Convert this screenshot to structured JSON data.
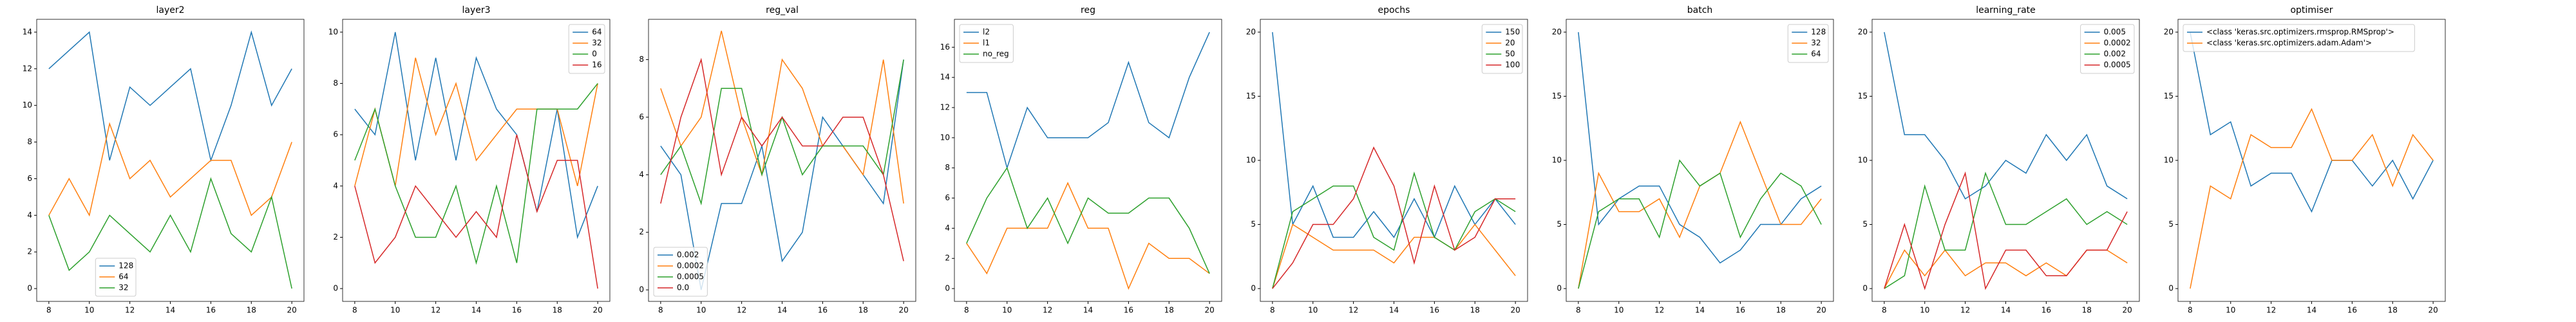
{
  "chart_data": [
    {
      "type": "line",
      "title": "layer2",
      "x": [
        8,
        9,
        10,
        11,
        12,
        13,
        14,
        15,
        16,
        17,
        18,
        19,
        20
      ],
      "xlim": [
        7.4,
        20.6
      ],
      "xticks": [
        8,
        10,
        12,
        14,
        16,
        18,
        20
      ],
      "ylim": [
        -0.7,
        14.7
      ],
      "yticks": [
        0,
        2,
        4,
        6,
        8,
        10,
        12,
        14
      ],
      "legend": "lower center",
      "series": [
        {
          "name": "128",
          "color": "#1f77b4",
          "values": [
            12,
            13,
            14,
            7,
            11,
            10,
            11,
            12,
            7,
            10,
            14,
            10,
            12
          ]
        },
        {
          "name": "64",
          "color": "#ff7f0e",
          "values": [
            4,
            6,
            4,
            9,
            6,
            7,
            5,
            6,
            7,
            7,
            4,
            5,
            8
          ]
        },
        {
          "name": "32",
          "color": "#2ca02c",
          "values": [
            4,
            1,
            2,
            4,
            3,
            2,
            4,
            2,
            6,
            3,
            2,
            5,
            0
          ]
        }
      ]
    },
    {
      "type": "line",
      "title": "layer3",
      "x": [
        8,
        9,
        10,
        11,
        12,
        13,
        14,
        15,
        16,
        17,
        18,
        19,
        20
      ],
      "xlim": [
        7.4,
        20.6
      ],
      "xticks": [
        8,
        10,
        12,
        14,
        16,
        18,
        20
      ],
      "ylim": [
        -0.5,
        10.5
      ],
      "yticks": [
        0,
        2,
        4,
        6,
        8,
        10
      ],
      "legend": "upper right",
      "series": [
        {
          "name": "64",
          "color": "#1f77b4",
          "values": [
            7,
            6,
            10,
            5,
            9,
            5,
            9,
            7,
            6,
            3,
            7,
            2,
            4
          ]
        },
        {
          "name": "32",
          "color": "#ff7f0e",
          "values": [
            4,
            7,
            4,
            9,
            6,
            8,
            5,
            6,
            7,
            7,
            7,
            4,
            8
          ]
        },
        {
          "name": "0",
          "color": "#2ca02c",
          "values": [
            5,
            7,
            4,
            2,
            2,
            4,
            1,
            4,
            1,
            7,
            7,
            7,
            8
          ]
        },
        {
          "name": "16",
          "color": "#d62728",
          "values": [
            4,
            1,
            2,
            4,
            3,
            2,
            3,
            2,
            6,
            3,
            5,
            5,
            0
          ]
        }
      ]
    },
    {
      "type": "line",
      "title": "reg_val",
      "x": [
        8,
        9,
        10,
        11,
        12,
        13,
        14,
        15,
        16,
        17,
        18,
        19,
        20
      ],
      "xlim": [
        7.4,
        20.6
      ],
      "xticks": [
        8,
        10,
        12,
        14,
        16,
        18,
        20
      ],
      "ylim": [
        -0.4,
        9.4
      ],
      "yticks": [
        0,
        2,
        4,
        6,
        8
      ],
      "legend": "lower left",
      "series": [
        {
          "name": "0.002",
          "color": "#1f77b4",
          "values": [
            5,
            4,
            0,
            3,
            3,
            5,
            1,
            2,
            6,
            5,
            4,
            3,
            8
          ]
        },
        {
          "name": "0.0002",
          "color": "#ff7f0e",
          "values": [
            7,
            5,
            6,
            9,
            6,
            4,
            8,
            7,
            5,
            5,
            4,
            8,
            3
          ]
        },
        {
          "name": "0.0005",
          "color": "#2ca02c",
          "values": [
            4,
            5,
            3,
            7,
            7,
            4,
            6,
            4,
            5,
            5,
            5,
            4,
            8
          ]
        },
        {
          "name": "0.0",
          "color": "#d62728",
          "values": [
            3,
            6,
            8,
            4,
            6,
            5,
            6,
            5,
            5,
            6,
            6,
            4,
            1
          ]
        }
      ]
    },
    {
      "type": "line",
      "title": "reg",
      "x": [
        8,
        9,
        10,
        11,
        12,
        13,
        14,
        15,
        16,
        17,
        18,
        19,
        20
      ],
      "xlim": [
        7.4,
        20.6
      ],
      "xticks": [
        8,
        10,
        12,
        14,
        16,
        18,
        20
      ],
      "ylim": [
        -0.85,
        17.85
      ],
      "yticks": [
        0,
        2,
        4,
        6,
        8,
        10,
        12,
        14,
        16
      ],
      "legend": "upper left",
      "series": [
        {
          "name": "l2",
          "color": "#1f77b4",
          "values": [
            13,
            13,
            8,
            12,
            10,
            10,
            10,
            11,
            15,
            11,
            10,
            14,
            17
          ]
        },
        {
          "name": "l1",
          "color": "#ff7f0e",
          "values": [
            3,
            1,
            4,
            4,
            4,
            7,
            4,
            4,
            0,
            3,
            2,
            2,
            1
          ]
        },
        {
          "name": "no_reg",
          "color": "#2ca02c",
          "values": [
            3,
            6,
            8,
            4,
            6,
            3,
            6,
            5,
            5,
            6,
            6,
            4,
            1
          ]
        }
      ]
    },
    {
      "type": "line",
      "title": "epochs",
      "x": [
        8,
        9,
        10,
        11,
        12,
        13,
        14,
        15,
        16,
        17,
        18,
        19,
        20
      ],
      "xlim": [
        7.4,
        20.6
      ],
      "xticks": [
        8,
        10,
        12,
        14,
        16,
        18,
        20
      ],
      "ylim": [
        -1,
        21
      ],
      "yticks": [
        0,
        5,
        10,
        15,
        20
      ],
      "legend": "upper right",
      "series": [
        {
          "name": "150",
          "color": "#1f77b4",
          "values": [
            20,
            5,
            8,
            4,
            4,
            6,
            4,
            7,
            4,
            8,
            5,
            7,
            5
          ]
        },
        {
          "name": "20",
          "color": "#ff7f0e",
          "values": [
            0,
            5,
            4,
            3,
            3,
            3,
            2,
            4,
            4,
            3,
            5,
            3,
            1
          ]
        },
        {
          "name": "50",
          "color": "#2ca02c",
          "values": [
            0,
            6,
            7,
            8,
            8,
            4,
            3,
            9,
            4,
            3,
            6,
            7,
            6
          ]
        },
        {
          "name": "100",
          "color": "#d62728",
          "values": [
            0,
            2,
            5,
            5,
            7,
            11,
            8,
            2,
            8,
            3,
            4,
            7,
            7
          ]
        }
      ]
    },
    {
      "type": "line",
      "title": "batch",
      "x": [
        8,
        9,
        10,
        11,
        12,
        13,
        14,
        15,
        16,
        17,
        18,
        19,
        20
      ],
      "xlim": [
        7.4,
        20.6
      ],
      "xticks": [
        8,
        10,
        12,
        14,
        16,
        18,
        20
      ],
      "ylim": [
        -1,
        21
      ],
      "yticks": [
        0,
        5,
        10,
        15,
        20
      ],
      "legend": "upper right",
      "series": [
        {
          "name": "128",
          "color": "#1f77b4",
          "values": [
            20,
            5,
            7,
            8,
            8,
            5,
            4,
            2,
            3,
            5,
            5,
            7,
            8
          ]
        },
        {
          "name": "32",
          "color": "#ff7f0e",
          "values": [
            0,
            9,
            6,
            6,
            7,
            4,
            8,
            9,
            13,
            9,
            5,
            5,
            7
          ]
        },
        {
          "name": "64",
          "color": "#2ca02c",
          "values": [
            0,
            6,
            7,
            7,
            4,
            10,
            8,
            9,
            4,
            7,
            9,
            8,
            5
          ]
        }
      ]
    },
    {
      "type": "line",
      "title": "learning_rate",
      "x": [
        8,
        9,
        10,
        11,
        12,
        13,
        14,
        15,
        16,
        17,
        18,
        19,
        20
      ],
      "xlim": [
        7.4,
        20.6
      ],
      "xticks": [
        8,
        10,
        12,
        14,
        16,
        18,
        20
      ],
      "ylim": [
        -1,
        21
      ],
      "yticks": [
        0,
        5,
        10,
        15,
        20
      ],
      "legend": "upper right",
      "series": [
        {
          "name": "0.005",
          "color": "#1f77b4",
          "values": [
            20,
            12,
            12,
            10,
            7,
            8,
            10,
            9,
            12,
            10,
            12,
            8,
            7
          ]
        },
        {
          "name": "0.0002",
          "color": "#ff7f0e",
          "values": [
            0,
            3,
            1,
            3,
            1,
            2,
            2,
            1,
            2,
            1,
            3,
            3,
            2
          ]
        },
        {
          "name": "0.002",
          "color": "#2ca02c",
          "values": [
            0,
            1,
            8,
            3,
            3,
            9,
            5,
            5,
            6,
            7,
            5,
            6,
            5
          ]
        },
        {
          "name": "0.0005",
          "color": "#d62728",
          "values": [
            0,
            5,
            0,
            5,
            9,
            0,
            3,
            3,
            1,
            1,
            3,
            3,
            6
          ]
        }
      ]
    },
    {
      "type": "line",
      "title": "optimiser",
      "x": [
        8,
        9,
        10,
        11,
        12,
        13,
        14,
        15,
        16,
        17,
        18,
        19,
        20
      ],
      "xlim": [
        7.4,
        20.6
      ],
      "xticks": [
        8,
        10,
        12,
        14,
        16,
        18,
        20
      ],
      "ylim": [
        -1,
        21
      ],
      "yticks": [
        0,
        5,
        10,
        15,
        20
      ],
      "legend": "upper left",
      "series": [
        {
          "name": "<class 'keras.src.optimizers.rmsprop.RMSprop'>",
          "color": "#1f77b4",
          "values": [
            20,
            12,
            13,
            8,
            9,
            9,
            6,
            10,
            10,
            8,
            10,
            7,
            10
          ]
        },
        {
          "name": "<class 'keras.src.optimizers.adam.Adam'>",
          "color": "#ff7f0e",
          "values": [
            0,
            8,
            7,
            12,
            11,
            11,
            14,
            10,
            10,
            12,
            8,
            12,
            10
          ]
        }
      ]
    }
  ]
}
